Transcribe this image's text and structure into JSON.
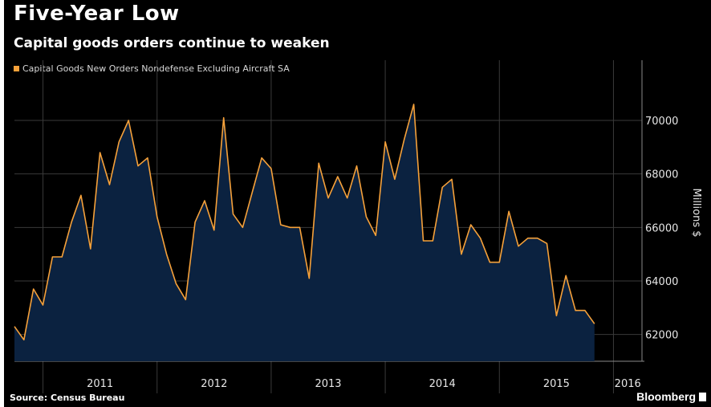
{
  "header": {
    "title": "Five-Year Low",
    "subtitle": "Capital goods orders continue to weaken"
  },
  "footer": {
    "source": "Source: Census Bureau",
    "brand": "Bloomberg"
  },
  "colors": {
    "background": "#000000",
    "line": "#f6a13a",
    "fill": "#0b2240",
    "grid": "#3a3a3a"
  },
  "chart_data": {
    "type": "area",
    "title": "Five-Year Low",
    "subtitle": "Capital goods orders continue to weaken",
    "ylabel": "Millions $",
    "xlabel": "",
    "ylim": [
      61000,
      71500
    ],
    "grid": true,
    "legend": "top-left",
    "y_ticks": [
      62000,
      64000,
      66000,
      68000,
      70000
    ],
    "y_axis_side": "right",
    "x_ticks": [
      "2011",
      "2012",
      "2013",
      "2014",
      "2015",
      "2016"
    ],
    "series": [
      {
        "name": "Capital Goods New Orders Nondefense Excluding Aircraft SA",
        "x": [
          "2010-10",
          "2010-11",
          "2010-12",
          "2011-01",
          "2011-02",
          "2011-03",
          "2011-04",
          "2011-05",
          "2011-06",
          "2011-07",
          "2011-08",
          "2011-09",
          "2011-10",
          "2011-11",
          "2011-12",
          "2012-01",
          "2012-02",
          "2012-03",
          "2012-04",
          "2012-05",
          "2012-06",
          "2012-07",
          "2012-08",
          "2012-09",
          "2012-10",
          "2012-11",
          "2012-12",
          "2013-01",
          "2013-02",
          "2013-03",
          "2013-04",
          "2013-05",
          "2013-06",
          "2013-07",
          "2013-08",
          "2013-09",
          "2013-10",
          "2013-11",
          "2013-12",
          "2014-01",
          "2014-02",
          "2014-03",
          "2014-04",
          "2014-05",
          "2014-06",
          "2014-07",
          "2014-08",
          "2014-09",
          "2014-10",
          "2014-11",
          "2014-12",
          "2015-01",
          "2015-02",
          "2015-03",
          "2015-04",
          "2015-05",
          "2015-06",
          "2015-07",
          "2015-08",
          "2015-09",
          "2015-10",
          "2015-11",
          "2015-12",
          "2016-01",
          "2016-02",
          "2016-03",
          "2016-04"
        ],
        "values": [
          62300,
          61800,
          63700,
          63100,
          64900,
          64900,
          66200,
          67200,
          65200,
          68800,
          67600,
          69200,
          70000,
          68300,
          68600,
          66400,
          65000,
          63900,
          63300,
          66200,
          67000,
          65900,
          70100,
          66500,
          66000,
          67300,
          68600,
          68200,
          66100,
          66000,
          66000,
          64100,
          68400,
          67100,
          67900,
          67100,
          68300,
          66400,
          65700,
          69200,
          67800,
          69300,
          70600,
          65500,
          65500,
          67500,
          67800,
          65000,
          66100,
          65600,
          64700,
          64700,
          66600,
          65300,
          65600,
          65600,
          65400,
          62700,
          64200,
          62900,
          62900,
          62400,
          null,
          null,
          null,
          null,
          null
        ]
      }
    ]
  }
}
